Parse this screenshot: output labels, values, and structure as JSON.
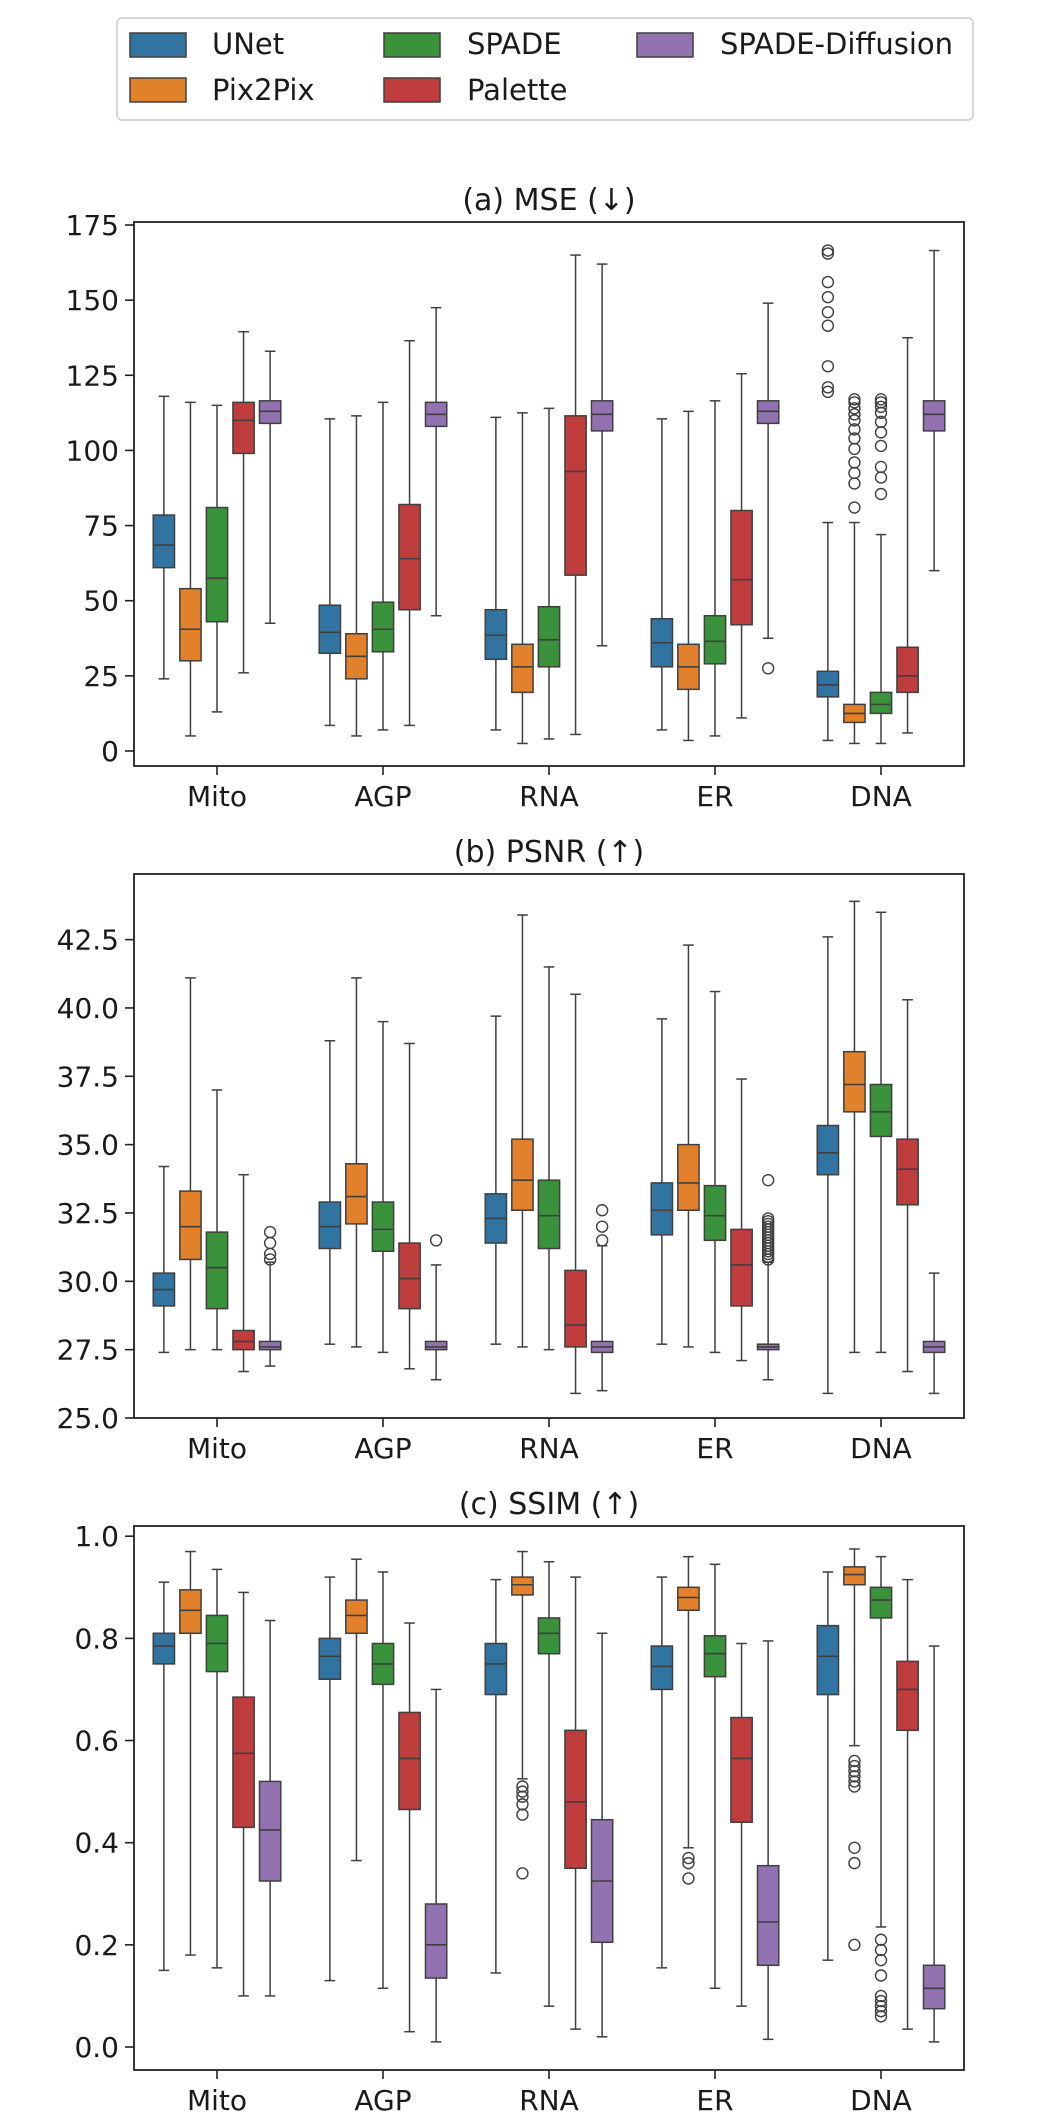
{
  "legend": {
    "entries": [
      {
        "name": "UNet",
        "color": "#3274a1"
      },
      {
        "name": "Pix2Pix",
        "color": "#e1812c"
      },
      {
        "name": "SPADE",
        "color": "#3a923a"
      },
      {
        "name": "Palette",
        "color": "#c03d3e"
      },
      {
        "name": "SPADE-Diffusion",
        "color": "#9372b2"
      }
    ]
  },
  "chart_data": [
    {
      "type": "box",
      "title": "(a) MSE (↓)",
      "categories": [
        "Mito",
        "AGP",
        "RNA",
        "ER",
        "DNA"
      ],
      "ylim": [
        -5,
        176
      ],
      "yticks": [
        0,
        25,
        50,
        75,
        100,
        125,
        150,
        175
      ],
      "ytick_labels": [
        "0",
        "25",
        "50",
        "75",
        "100",
        "125",
        "150",
        "175"
      ],
      "series": [
        {
          "name": "UNet",
          "boxes": [
            {
              "q1": 61,
              "med": 68.5,
              "q3": 78.5,
              "wlo": 24,
              "whi": 118,
              "fliers": []
            },
            {
              "q1": 32.5,
              "med": 39.5,
              "q3": 48.5,
              "wlo": 8.5,
              "whi": 110.5,
              "fliers": []
            },
            {
              "q1": 30.5,
              "med": 38.5,
              "q3": 47,
              "wlo": 7,
              "whi": 111,
              "fliers": []
            },
            {
              "q1": 28,
              "med": 36,
              "q3": 44,
              "wlo": 7,
              "whi": 110.5,
              "fliers": []
            },
            {
              "q1": 18,
              "med": 22,
              "q3": 26.5,
              "wlo": 3.5,
              "whi": 76,
              "fliers": [
                119.5,
                121,
                128,
                141.5,
                146,
                151,
                156,
                165.5,
                166.5
              ]
            }
          ]
        },
        {
          "name": "Pix2Pix",
          "boxes": [
            {
              "q1": 30,
              "med": 40.5,
              "q3": 54,
              "wlo": 5,
              "whi": 116,
              "fliers": []
            },
            {
              "q1": 24,
              "med": 31.5,
              "q3": 39,
              "wlo": 5,
              "whi": 111.5,
              "fliers": []
            },
            {
              "q1": 19.5,
              "med": 28,
              "q3": 35.5,
              "wlo": 2.5,
              "whi": 112.5,
              "fliers": []
            },
            {
              "q1": 20.5,
              "med": 28,
              "q3": 35.5,
              "wlo": 3.5,
              "whi": 113,
              "fliers": []
            },
            {
              "q1": 9.5,
              "med": 12.5,
              "q3": 15.5,
              "wlo": 2.5,
              "whi": 76,
              "fliers": [
                81,
                89,
                92.5,
                96,
                100.5,
                104,
                107,
                110,
                112,
                114,
                116,
                117
              ]
            }
          ]
        },
        {
          "name": "SPADE",
          "boxes": [
            {
              "q1": 43,
              "med": 57.5,
              "q3": 81,
              "wlo": 13,
              "whi": 115,
              "fliers": []
            },
            {
              "q1": 33,
              "med": 40.5,
              "q3": 49.5,
              "wlo": 7,
              "whi": 116,
              "fliers": []
            },
            {
              "q1": 28,
              "med": 37,
              "q3": 48,
              "wlo": 4,
              "whi": 114,
              "fliers": []
            },
            {
              "q1": 29,
              "med": 36.5,
              "q3": 45,
              "wlo": 5,
              "whi": 116.5,
              "fliers": []
            },
            {
              "q1": 12.5,
              "med": 15.5,
              "q3": 19.5,
              "wlo": 2.5,
              "whi": 72,
              "fliers": [
                85.5,
                91,
                94.5,
                101.5,
                106,
                109.5,
                112.5,
                114.5,
                116,
                117
              ]
            }
          ]
        },
        {
          "name": "Palette",
          "boxes": [
            {
              "q1": 99,
              "med": 110,
              "q3": 116,
              "wlo": 26,
              "whi": 139.5,
              "fliers": []
            },
            {
              "q1": 47,
              "med": 64,
              "q3": 82,
              "wlo": 8.5,
              "whi": 136.5,
              "fliers": []
            },
            {
              "q1": 58.5,
              "med": 93,
              "q3": 111.5,
              "wlo": 5.5,
              "whi": 165,
              "fliers": []
            },
            {
              "q1": 42,
              "med": 57,
              "q3": 80,
              "wlo": 11,
              "whi": 125.5,
              "fliers": []
            },
            {
              "q1": 19.5,
              "med": 25,
              "q3": 34.5,
              "wlo": 6,
              "whi": 137.5,
              "fliers": []
            }
          ]
        },
        {
          "name": "SPADE-Diffusion",
          "boxes": [
            {
              "q1": 109,
              "med": 113,
              "q3": 116.5,
              "wlo": 42.5,
              "whi": 133,
              "fliers": []
            },
            {
              "q1": 108,
              "med": 112,
              "q3": 116,
              "wlo": 45,
              "whi": 147.5,
              "fliers": []
            },
            {
              "q1": 106.5,
              "med": 112,
              "q3": 116.5,
              "wlo": 35,
              "whi": 162,
              "fliers": []
            },
            {
              "q1": 109,
              "med": 113,
              "q3": 116.5,
              "wlo": 37.5,
              "whi": 149,
              "fliers": [
                27.5
              ]
            },
            {
              "q1": 106.5,
              "med": 112,
              "q3": 116.5,
              "wlo": 60,
              "whi": 166.5,
              "fliers": []
            }
          ]
        }
      ]
    },
    {
      "type": "box",
      "title": "(b) PSNR (↑)",
      "categories": [
        "Mito",
        "AGP",
        "RNA",
        "ER",
        "DNA"
      ],
      "ylim": [
        25,
        44.9
      ],
      "yticks": [
        25,
        27.5,
        30,
        32.5,
        35,
        37.5,
        40,
        42.5
      ],
      "ytick_labels": [
        "25.0",
        "27.5",
        "30.0",
        "32.5",
        "35.0",
        "37.5",
        "40.0",
        "42.5"
      ],
      "series": [
        {
          "name": "UNet",
          "boxes": [
            {
              "q1": 29.1,
              "med": 29.7,
              "q3": 30.3,
              "wlo": 27.4,
              "whi": 34.2,
              "fliers": []
            },
            {
              "q1": 31.2,
              "med": 32.0,
              "q3": 32.9,
              "wlo": 27.7,
              "whi": 38.8,
              "fliers": []
            },
            {
              "q1": 31.4,
              "med": 32.3,
              "q3": 33.2,
              "wlo": 27.7,
              "whi": 39.7,
              "fliers": []
            },
            {
              "q1": 31.7,
              "med": 32.6,
              "q3": 33.6,
              "wlo": 27.7,
              "whi": 39.6,
              "fliers": []
            },
            {
              "q1": 33.9,
              "med": 34.7,
              "q3": 35.7,
              "wlo": 25.9,
              "whi": 42.6,
              "fliers": []
            }
          ]
        },
        {
          "name": "Pix2Pix",
          "boxes": [
            {
              "q1": 30.8,
              "med": 32.0,
              "q3": 33.3,
              "wlo": 27.5,
              "whi": 41.1,
              "fliers": []
            },
            {
              "q1": 32.1,
              "med": 33.1,
              "q3": 34.3,
              "wlo": 27.6,
              "whi": 41.1,
              "fliers": []
            },
            {
              "q1": 32.6,
              "med": 33.7,
              "q3": 35.2,
              "wlo": 27.6,
              "whi": 43.4,
              "fliers": []
            },
            {
              "q1": 32.6,
              "med": 33.6,
              "q3": 35.0,
              "wlo": 27.6,
              "whi": 42.3,
              "fliers": []
            },
            {
              "q1": 36.2,
              "med": 37.2,
              "q3": 38.4,
              "wlo": 27.4,
              "whi": 43.9,
              "fliers": []
            }
          ]
        },
        {
          "name": "SPADE",
          "boxes": [
            {
              "q1": 29.0,
              "med": 30.5,
              "q3": 31.8,
              "wlo": 27.5,
              "whi": 37.0,
              "fliers": []
            },
            {
              "q1": 31.1,
              "med": 31.9,
              "q3": 32.9,
              "wlo": 27.4,
              "whi": 39.5,
              "fliers": []
            },
            {
              "q1": 31.2,
              "med": 32.4,
              "q3": 33.7,
              "wlo": 27.5,
              "whi": 41.5,
              "fliers": []
            },
            {
              "q1": 31.5,
              "med": 32.4,
              "q3": 33.5,
              "wlo": 27.4,
              "whi": 40.6,
              "fliers": []
            },
            {
              "q1": 35.3,
              "med": 36.2,
              "q3": 37.2,
              "wlo": 27.4,
              "whi": 43.5,
              "fliers": []
            }
          ]
        },
        {
          "name": "Palette",
          "boxes": [
            {
              "q1": 27.5,
              "med": 27.8,
              "q3": 28.2,
              "wlo": 26.7,
              "whi": 33.9,
              "fliers": []
            },
            {
              "q1": 29.0,
              "med": 30.1,
              "q3": 31.4,
              "wlo": 26.8,
              "whi": 38.7,
              "fliers": []
            },
            {
              "q1": 27.6,
              "med": 28.4,
              "q3": 30.4,
              "wlo": 25.9,
              "whi": 40.5,
              "fliers": []
            },
            {
              "q1": 29.1,
              "med": 30.6,
              "q3": 31.9,
              "wlo": 27.1,
              "whi": 37.4,
              "fliers": []
            },
            {
              "q1": 32.8,
              "med": 34.1,
              "q3": 35.2,
              "wlo": 26.7,
              "whi": 40.3,
              "fliers": []
            }
          ]
        },
        {
          "name": "SPADE-Diffusion",
          "boxes": [
            {
              "q1": 27.5,
              "med": 27.6,
              "q3": 27.8,
              "wlo": 26.9,
              "whi": 30.7,
              "fliers": [
                30.8,
                31.0,
                31.4,
                31.8
              ]
            },
            {
              "q1": 27.5,
              "med": 27.6,
              "q3": 27.8,
              "wlo": 26.4,
              "whi": 30.6,
              "fliers": [
                31.5
              ]
            },
            {
              "q1": 27.4,
              "med": 27.6,
              "q3": 27.8,
              "wlo": 26.0,
              "whi": 31.3,
              "fliers": [
                31.5,
                32.0,
                32.6
              ]
            },
            {
              "q1": 27.5,
              "med": 27.6,
              "q3": 27.7,
              "wlo": 26.4,
              "whi": 30.7,
              "fliers": [
                30.8,
                30.9,
                31.0,
                31.1,
                31.2,
                31.3,
                31.4,
                31.5,
                31.6,
                31.7,
                31.8,
                31.9,
                32.0,
                32.1,
                32.2,
                32.3,
                33.7
              ]
            },
            {
              "q1": 27.4,
              "med": 27.6,
              "q3": 27.8,
              "wlo": 25.9,
              "whi": 30.3,
              "fliers": []
            }
          ]
        }
      ]
    },
    {
      "type": "box",
      "title": "(c) SSIM (↑)",
      "categories": [
        "Mito",
        "AGP",
        "RNA",
        "ER",
        "DNA"
      ],
      "ylim": [
        -0.045,
        1.02
      ],
      "yticks": [
        0,
        0.2,
        0.4,
        0.6,
        0.8,
        1.0
      ],
      "ytick_labels": [
        "0.0",
        "0.2",
        "0.4",
        "0.6",
        "0.8",
        "1.0"
      ],
      "series": [
        {
          "name": "UNet",
          "boxes": [
            {
              "q1": 0.75,
              "med": 0.785,
              "q3": 0.81,
              "wlo": 0.15,
              "whi": 0.91,
              "fliers": []
            },
            {
              "q1": 0.72,
              "med": 0.765,
              "q3": 0.8,
              "wlo": 0.13,
              "whi": 0.92,
              "fliers": []
            },
            {
              "q1": 0.69,
              "med": 0.75,
              "q3": 0.79,
              "wlo": 0.145,
              "whi": 0.915,
              "fliers": []
            },
            {
              "q1": 0.7,
              "med": 0.745,
              "q3": 0.785,
              "wlo": 0.155,
              "whi": 0.92,
              "fliers": []
            },
            {
              "q1": 0.69,
              "med": 0.765,
              "q3": 0.825,
              "wlo": 0.17,
              "whi": 0.93,
              "fliers": []
            }
          ]
        },
        {
          "name": "Pix2Pix",
          "boxes": [
            {
              "q1": 0.81,
              "med": 0.855,
              "q3": 0.895,
              "wlo": 0.18,
              "whi": 0.97,
              "fliers": []
            },
            {
              "q1": 0.81,
              "med": 0.845,
              "q3": 0.875,
              "wlo": 0.365,
              "whi": 0.955,
              "fliers": []
            },
            {
              "q1": 0.885,
              "med": 0.905,
              "q3": 0.92,
              "wlo": 0.525,
              "whi": 0.97,
              "fliers": [
                0.34,
                0.455,
                0.475,
                0.49,
                0.5,
                0.51
              ]
            },
            {
              "q1": 0.855,
              "med": 0.88,
              "q3": 0.9,
              "wlo": 0.39,
              "whi": 0.96,
              "fliers": [
                0.33,
                0.36,
                0.37
              ]
            },
            {
              "q1": 0.905,
              "med": 0.925,
              "q3": 0.94,
              "wlo": 0.59,
              "whi": 0.975,
              "fliers": [
                0.2,
                0.36,
                0.39,
                0.51,
                0.52,
                0.53,
                0.54,
                0.55,
                0.56
              ]
            }
          ]
        },
        {
          "name": "SPADE",
          "boxes": [
            {
              "q1": 0.735,
              "med": 0.79,
              "q3": 0.845,
              "wlo": 0.155,
              "whi": 0.935,
              "fliers": []
            },
            {
              "q1": 0.71,
              "med": 0.75,
              "q3": 0.79,
              "wlo": 0.115,
              "whi": 0.93,
              "fliers": []
            },
            {
              "q1": 0.77,
              "med": 0.81,
              "q3": 0.84,
              "wlo": 0.08,
              "whi": 0.95,
              "fliers": []
            },
            {
              "q1": 0.725,
              "med": 0.77,
              "q3": 0.805,
              "wlo": 0.115,
              "whi": 0.945,
              "fliers": []
            },
            {
              "q1": 0.84,
              "med": 0.875,
              "q3": 0.9,
              "wlo": 0.235,
              "whi": 0.96,
              "fliers": [
                0.06,
                0.07,
                0.08,
                0.09,
                0.1,
                0.14,
                0.17,
                0.19,
                0.21
              ]
            }
          ]
        },
        {
          "name": "Palette",
          "boxes": [
            {
              "q1": 0.43,
              "med": 0.575,
              "q3": 0.685,
              "wlo": 0.1,
              "whi": 0.89,
              "fliers": []
            },
            {
              "q1": 0.465,
              "med": 0.565,
              "q3": 0.655,
              "wlo": 0.03,
              "whi": 0.83,
              "fliers": []
            },
            {
              "q1": 0.35,
              "med": 0.48,
              "q3": 0.62,
              "wlo": 0.035,
              "whi": 0.92,
              "fliers": []
            },
            {
              "q1": 0.44,
              "med": 0.565,
              "q3": 0.645,
              "wlo": 0.08,
              "whi": 0.79,
              "fliers": []
            },
            {
              "q1": 0.62,
              "med": 0.7,
              "q3": 0.755,
              "wlo": 0.035,
              "whi": 0.915,
              "fliers": []
            }
          ]
        },
        {
          "name": "SPADE-Diffusion",
          "boxes": [
            {
              "q1": 0.325,
              "med": 0.425,
              "q3": 0.52,
              "wlo": 0.1,
              "whi": 0.835,
              "fliers": []
            },
            {
              "q1": 0.135,
              "med": 0.2,
              "q3": 0.28,
              "wlo": 0.01,
              "whi": 0.7,
              "fliers": []
            },
            {
              "q1": 0.205,
              "med": 0.325,
              "q3": 0.445,
              "wlo": 0.02,
              "whi": 0.81,
              "fliers": []
            },
            {
              "q1": 0.16,
              "med": 0.245,
              "q3": 0.355,
              "wlo": 0.015,
              "whi": 0.795,
              "fliers": []
            },
            {
              "q1": 0.075,
              "med": 0.115,
              "q3": 0.16,
              "wlo": 0.01,
              "whi": 0.785,
              "fliers": []
            }
          ]
        }
      ]
    }
  ]
}
